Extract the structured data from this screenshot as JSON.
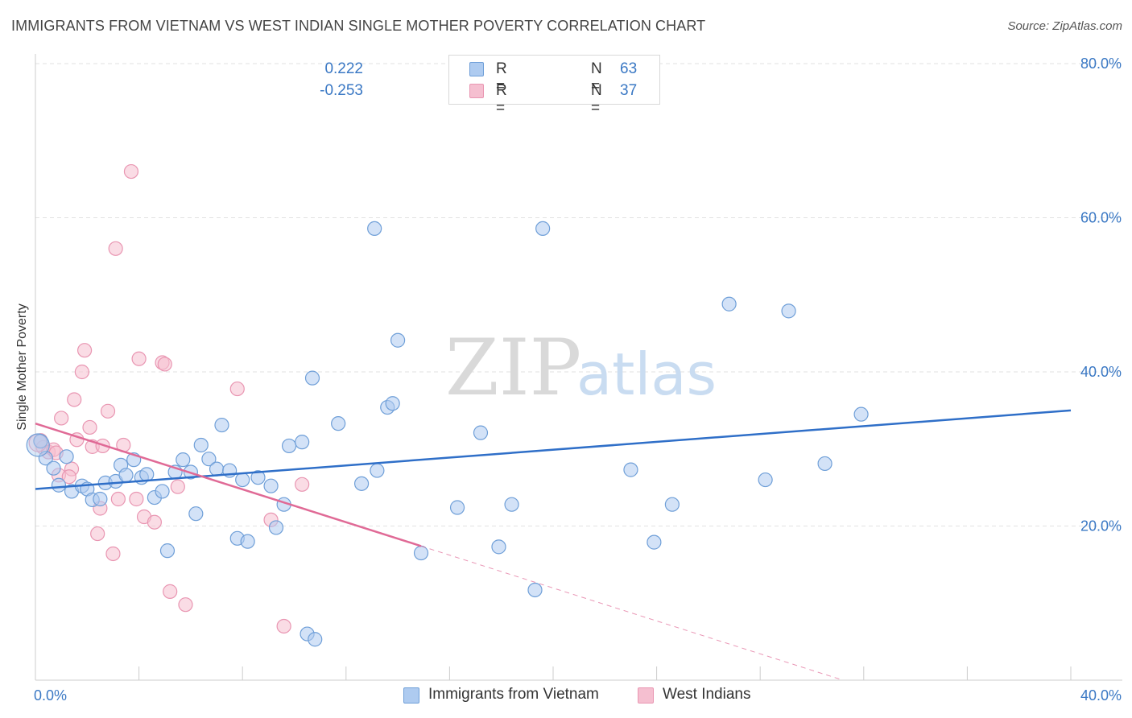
{
  "title": "IMMIGRANTS FROM VIETNAM VS WEST INDIAN SINGLE MOTHER POVERTY CORRELATION CHART",
  "source": "Source: ZipAtlas.com",
  "watermark": {
    "zip": "ZIP",
    "atlas": "atlas"
  },
  "colors": {
    "blue_fill": "#aecbf0",
    "blue_stroke": "#6f9fd8",
    "blue_line": "#2f6fc8",
    "pink_fill": "#f5bfd0",
    "pink_stroke": "#e996b2",
    "pink_line": "#e06a96",
    "grid": "#e2e2e2",
    "tick_text": "#3a78c4"
  },
  "legend_top": [
    {
      "r_label": "R =",
      "r_value": " 0.222",
      "n_label": "N =",
      "n_value": "63"
    },
    {
      "r_label": "R =",
      "r_value": "-0.253",
      "n_label": "N =",
      "n_value": "37"
    }
  ],
  "legend_bottom": [
    {
      "label": "Immigrants from Vietnam"
    },
    {
      "label": "West Indians"
    }
  ],
  "chart_data": {
    "type": "scatter",
    "title": "IMMIGRANTS FROM VIETNAM VS WEST INDIAN SINGLE MOTHER POVERTY CORRELATION CHART",
    "xlabel": "",
    "ylabel": "Single Mother Poverty",
    "xlim": [
      0,
      40
    ],
    "ylim": [
      0,
      80
    ],
    "x_tick_labels": [
      "0.0%",
      "40.0%"
    ],
    "y_ticks": [
      20,
      40,
      60,
      80
    ],
    "y_tick_labels": [
      "20.0%",
      "40.0%",
      "60.0%",
      "80.0%"
    ],
    "grid": "horizontal dashed",
    "legend_position": "top-center",
    "series": [
      {
        "name": "Immigrants from Vietnam",
        "color": "#aecbf0",
        "trend": {
          "x": [
            0,
            40
          ],
          "y": [
            24.8,
            35.0
          ],
          "extended": false
        },
        "points": [
          [
            0.2,
            31.0
          ],
          [
            0.4,
            28.8
          ],
          [
            0.7,
            27.5
          ],
          [
            0.9,
            25.3
          ],
          [
            1.2,
            29.0
          ],
          [
            1.4,
            24.5
          ],
          [
            1.8,
            25.2
          ],
          [
            2.0,
            24.8
          ],
          [
            2.2,
            23.4
          ],
          [
            2.5,
            23.5
          ],
          [
            2.7,
            25.6
          ],
          [
            3.1,
            25.8
          ],
          [
            3.3,
            27.9
          ],
          [
            3.5,
            26.6
          ],
          [
            3.8,
            28.6
          ],
          [
            4.1,
            26.3
          ],
          [
            4.3,
            26.7
          ],
          [
            4.6,
            23.7
          ],
          [
            4.9,
            24.5
          ],
          [
            5.1,
            16.8
          ],
          [
            5.4,
            27.0
          ],
          [
            5.7,
            28.6
          ],
          [
            6.0,
            27.0
          ],
          [
            6.2,
            21.6
          ],
          [
            6.4,
            30.5
          ],
          [
            6.7,
            28.7
          ],
          [
            7.0,
            27.4
          ],
          [
            7.2,
            33.1
          ],
          [
            7.5,
            27.2
          ],
          [
            7.8,
            18.4
          ],
          [
            8.0,
            26.0
          ],
          [
            8.2,
            18.0
          ],
          [
            8.6,
            26.3
          ],
          [
            9.1,
            25.2
          ],
          [
            9.3,
            19.8
          ],
          [
            9.6,
            22.8
          ],
          [
            9.8,
            30.4
          ],
          [
            10.3,
            30.9
          ],
          [
            10.5,
            6.0
          ],
          [
            10.8,
            5.3
          ],
          [
            10.7,
            39.2
          ],
          [
            11.7,
            33.3
          ],
          [
            12.6,
            25.5
          ],
          [
            13.1,
            58.6
          ],
          [
            13.2,
            27.2
          ],
          [
            13.6,
            35.4
          ],
          [
            13.8,
            35.9
          ],
          [
            14.0,
            44.1
          ],
          [
            14.9,
            16.5
          ],
          [
            16.3,
            22.4
          ],
          [
            17.2,
            32.1
          ],
          [
            17.9,
            17.3
          ],
          [
            18.4,
            22.8
          ],
          [
            19.3,
            11.7
          ],
          [
            19.6,
            58.6
          ],
          [
            23.0,
            27.3
          ],
          [
            23.9,
            17.9
          ],
          [
            24.6,
            22.8
          ],
          [
            26.8,
            48.8
          ],
          [
            28.2,
            26.0
          ],
          [
            29.1,
            47.9
          ],
          [
            30.5,
            28.1
          ],
          [
            31.9,
            34.5
          ]
        ]
      },
      {
        "name": "West Indians",
        "color": "#f5bfd0",
        "trend": {
          "x": [
            0,
            14.9
          ],
          "y": [
            33.3,
            17.4
          ],
          "extended_to": [
            31.2,
            0
          ]
        },
        "points": [
          [
            0.2,
            31.1
          ],
          [
            0.3,
            30.2
          ],
          [
            0.5,
            29.6
          ],
          [
            0.7,
            29.9
          ],
          [
            0.9,
            26.6
          ],
          [
            1.0,
            34.0
          ],
          [
            1.4,
            27.4
          ],
          [
            1.5,
            36.4
          ],
          [
            1.6,
            31.2
          ],
          [
            1.8,
            40.0
          ],
          [
            1.9,
            42.8
          ],
          [
            2.1,
            32.8
          ],
          [
            2.2,
            30.3
          ],
          [
            2.4,
            19.0
          ],
          [
            2.5,
            22.3
          ],
          [
            2.6,
            30.4
          ],
          [
            2.8,
            34.9
          ],
          [
            3.0,
            16.4
          ],
          [
            3.1,
            56.0
          ],
          [
            3.2,
            23.5
          ],
          [
            3.4,
            30.5
          ],
          [
            3.7,
            66.0
          ],
          [
            3.9,
            23.5
          ],
          [
            4.0,
            41.7
          ],
          [
            4.2,
            21.2
          ],
          [
            4.6,
            20.5
          ],
          [
            4.9,
            41.2
          ],
          [
            5.0,
            41.0
          ],
          [
            5.2,
            11.5
          ],
          [
            5.5,
            25.1
          ],
          [
            5.8,
            9.8
          ],
          [
            7.8,
            37.8
          ],
          [
            9.1,
            20.8
          ],
          [
            9.6,
            7.0
          ],
          [
            10.3,
            25.4
          ],
          [
            1.3,
            26.4
          ],
          [
            0.8,
            29.5
          ]
        ]
      }
    ]
  }
}
